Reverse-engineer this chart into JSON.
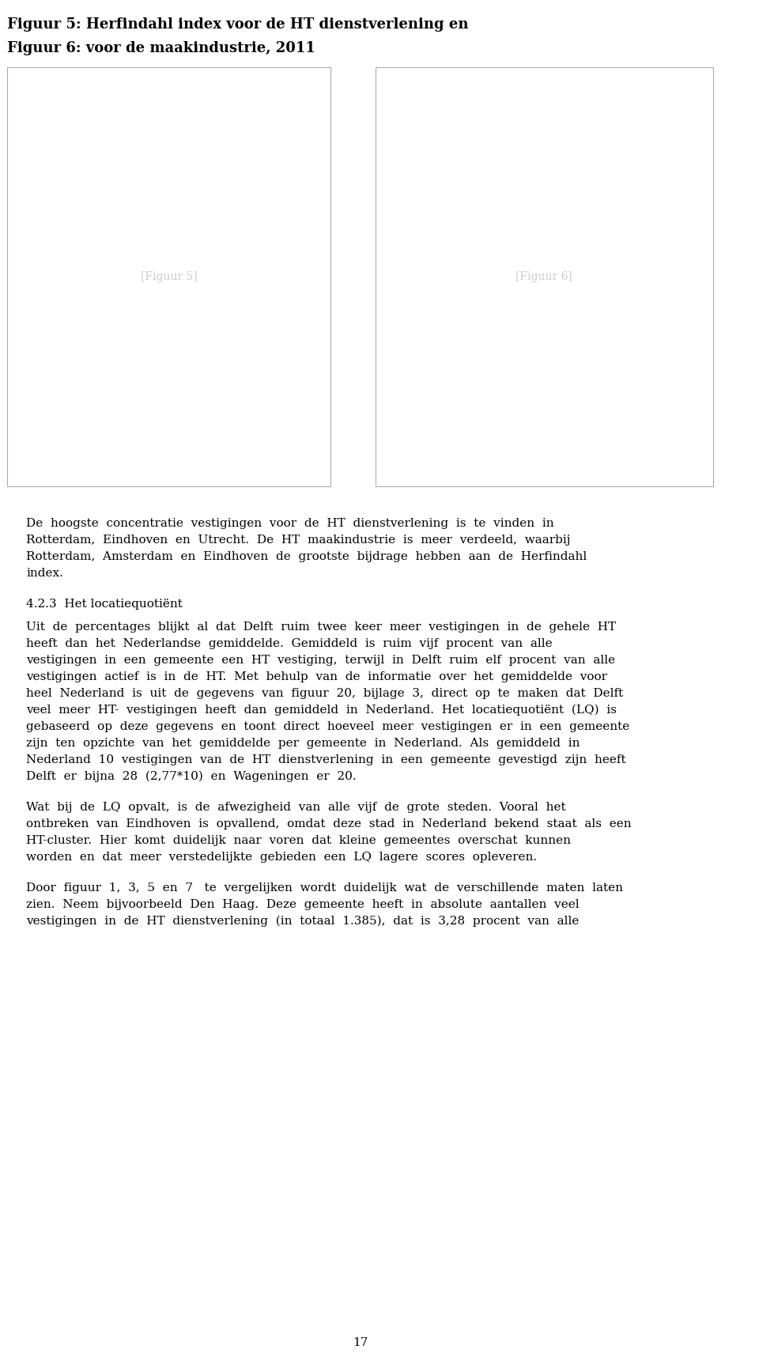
{
  "title_line1": "Figuur 5: Herfindahl index voor de HT dienstverlening en",
  "title_line2": "Figuur 6: voor de maakindustrie, 2011",
  "paragraph1": "De  hoogste  concentratie  vestigingen  voor  de  HT  dienstverlening  is  te  vinden  in Rotterdam,  Eindhoven  en  Utrecht.  De  HT  maakindustrie  is  meer  verdeeld,  waarbij Rotterdam,  Amsterdam  en  Eindhoven  de  grootste  bijdrage  hebben  aan  de  Herfindahl index.",
  "section_header": "4.2.3  Het locatiequotiënt",
  "paragraph2": "Uit  de  percentages  blijkt  al  dat  Delft  ruim  twee  keer  meer  vestigingen  in  de  gehele  HT heeft  dan  het  Nederlandse  gemiddelde.  Gemiddeld  is  ruim  vijf  procent  van  alle vestigingen  in  een  gemeente  een  HT  vestiging,  terwijl  in  Delft  ruim  elf  procent  van  alle vestigingen  actief  is  in  de  HT.  Met  behulp  van  de  informatie  over  het  gemiddelde  voor heel  Nederland  is  uit  de  gegevens  van  figuur  20,  bijlage  3,  direct  op  te  maken  dat  Delft veel  meer  HT-  vestigingen  heeft  dan  gemiddeld  in  Nederland.  Het  locatiequotiënt  (LQ)  is gebaseerd  op  deze  gegevens  en  toont  direct  hoeveel  meer  vestigingen  er  in  een  gemeente zijn  ten  opzichte  van  het  gemiddelde  per  gemeente  in  Nederland.  Als  gemiddeld  in Nederland  10  vestigingen  van  de  HT  dienstverlening  in  een  gemeente  gevestigd  zijn  heeft Delft  er  bijna  28  (2,77*10)  en  Wageningen  er  20.",
  "paragraph3": "Wat  bij  de  LQ  opvalt,  is  de  afwezigheid  van  alle  vijf  de  grote  steden.  Vooral  het ontbreken  van  Eindhoven  is  opvallend,  omdat  deze  stad  in  Nederland  bekend  staat  als  een HT-cluster.  Hier  komt  duidelijk  naar  voren  dat  kleine  gemeentes  overschat  kunnen worden  en  dat  meer  verstedelijkte  gebieden  een  LQ  lagere  scores  opleveren.",
  "paragraph4": "Door  figuur  1,  3,  5  en  7   te  vergelijken  wordt  duidelijk  wat  de  verschillende  maten  laten zien.  Neem  bijvoorbeeld  Den  Haag.  Deze  gemeente  heeft  in  absolute  aantallen  veel vestigingen  in  de  HT  dienstverlening  (in  totaal  1.385),  dat  is  3,28  procent  van  alle",
  "page_number": "17",
  "background_color": "#ffffff",
  "text_color": "#000000",
  "map_border_color": "#aaaaaa"
}
